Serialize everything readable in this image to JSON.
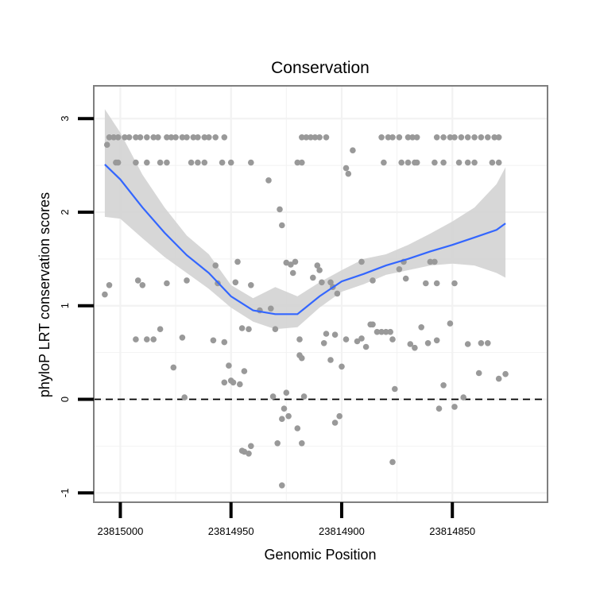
{
  "chart_data": {
    "type": "scatter",
    "title": "Conservation",
    "xlabel": "Genomic Position",
    "ylabel": "phyloP LRT conservation scores",
    "x_reversed": true,
    "xlim": [
      23815012,
      23814807
    ],
    "ylim": [
      -1.1,
      3.35
    ],
    "x_ticks": [
      23815000,
      23814950,
      23814900,
      23814850
    ],
    "x_tick_labels": [
      "23815000",
      "23814950",
      "23814900",
      "23814850"
    ],
    "y_ticks": [
      -1,
      0,
      1,
      2,
      3
    ],
    "y_tick_labels": [
      "-1",
      "0",
      "1",
      "2",
      "3"
    ],
    "grid": true,
    "reference_line": {
      "y": 0,
      "style": "dashed"
    },
    "colors": {
      "points": "#999999",
      "smooth_line": "#3366ff",
      "ribbon": "#d3d3d3",
      "panel_border": "#7f7f7f",
      "grid": "#f2f2f2",
      "reference_line": "#000000"
    },
    "series": [
      {
        "kind": "points",
        "points": [
          [
            23815006,
            2.72
          ],
          [
            23815005,
            2.8
          ],
          [
            23815003,
            2.8
          ],
          [
            23815001,
            2.8
          ],
          [
            23814998,
            2.8
          ],
          [
            23814996,
            2.8
          ],
          [
            23814993,
            2.8
          ],
          [
            23814991,
            2.8
          ],
          [
            23814988,
            2.8
          ],
          [
            23814985,
            2.8
          ],
          [
            23814983,
            2.8
          ],
          [
            23814979,
            2.8
          ],
          [
            23814977,
            2.8
          ],
          [
            23814975,
            2.8
          ],
          [
            23814972,
            2.8
          ],
          [
            23814970,
            2.8
          ],
          [
            23814967,
            2.8
          ],
          [
            23814965,
            2.8
          ],
          [
            23814962,
            2.8
          ],
          [
            23814960,
            2.8
          ],
          [
            23814957,
            2.8
          ],
          [
            23814953,
            2.8
          ],
          [
            23815002,
            2.53
          ],
          [
            23815001,
            2.53
          ],
          [
            23814993,
            2.53
          ],
          [
            23814988,
            2.53
          ],
          [
            23814982,
            2.53
          ],
          [
            23814979,
            2.53
          ],
          [
            23814968,
            2.53
          ],
          [
            23814965,
            2.53
          ],
          [
            23814962,
            2.53
          ],
          [
            23814954,
            2.53
          ],
          [
            23814950,
            2.53
          ],
          [
            23814918,
            2.8
          ],
          [
            23814916,
            2.8
          ],
          [
            23814914,
            2.8
          ],
          [
            23814912,
            2.8
          ],
          [
            23814910,
            2.8
          ],
          [
            23814907,
            2.8
          ],
          [
            23814882,
            2.8
          ],
          [
            23814879,
            2.8
          ],
          [
            23814877,
            2.8
          ],
          [
            23814874,
            2.8
          ],
          [
            23814870,
            2.8
          ],
          [
            23814868,
            2.8
          ],
          [
            23814866,
            2.8
          ],
          [
            23814857,
            2.8
          ],
          [
            23814854,
            2.8
          ],
          [
            23814851,
            2.8
          ],
          [
            23814849,
            2.8
          ],
          [
            23814846,
            2.8
          ],
          [
            23814843,
            2.8
          ],
          [
            23814840,
            2.8
          ],
          [
            23814837,
            2.8
          ],
          [
            23814834,
            2.8
          ],
          [
            23814831,
            2.8
          ],
          [
            23814829,
            2.8
          ],
          [
            23814920,
            2.53
          ],
          [
            23814918,
            2.53
          ],
          [
            23814881,
            2.53
          ],
          [
            23814873,
            2.53
          ],
          [
            23814870,
            2.53
          ],
          [
            23814867,
            2.53
          ],
          [
            23814866,
            2.53
          ],
          [
            23814858,
            2.53
          ],
          [
            23814854,
            2.53
          ],
          [
            23814847,
            2.53
          ],
          [
            23814843,
            2.53
          ],
          [
            23814840,
            2.53
          ],
          [
            23814832,
            2.53
          ],
          [
            23814829,
            2.53
          ],
          [
            23814941,
            2.53
          ],
          [
            23814933,
            2.34
          ],
          [
            23814928,
            2.03
          ],
          [
            23814927,
            1.86
          ],
          [
            23814895,
            2.66
          ],
          [
            23814898,
            2.47
          ],
          [
            23814897,
            2.41
          ],
          [
            23815007,
            1.12
          ],
          [
            23815005,
            1.22
          ],
          [
            23814992,
            1.27
          ],
          [
            23814990,
            1.22
          ],
          [
            23814979,
            1.24
          ],
          [
            23814970,
            1.27
          ],
          [
            23814957,
            1.43
          ],
          [
            23814956,
            1.24
          ],
          [
            23814948,
            1.25
          ],
          [
            23814947,
            1.47
          ],
          [
            23814941,
            1.22
          ],
          [
            23814925,
            1.46
          ],
          [
            23814923,
            1.44
          ],
          [
            23814922,
            1.35
          ],
          [
            23814921,
            1.47
          ],
          [
            23814905,
            1.25
          ],
          [
            23814904,
            1.2
          ],
          [
            23814902,
            1.13
          ],
          [
            23814911,
            1.43
          ],
          [
            23814910,
            1.38
          ],
          [
            23814909,
            1.25
          ],
          [
            23814913,
            1.3
          ],
          [
            23814891,
            1.47
          ],
          [
            23814886,
            1.27
          ],
          [
            23814874,
            1.39
          ],
          [
            23814871,
            1.29
          ],
          [
            23814872,
            1.47
          ],
          [
            23814860,
            1.47
          ],
          [
            23814858,
            1.47
          ],
          [
            23814862,
            1.24
          ],
          [
            23814857,
            1.24
          ],
          [
            23814849,
            1.24
          ],
          [
            23814993,
            0.64
          ],
          [
            23814988,
            0.64
          ],
          [
            23814985,
            0.64
          ],
          [
            23814982,
            0.75
          ],
          [
            23814972,
            0.66
          ],
          [
            23814976,
            0.34
          ],
          [
            23814971,
            0.02
          ],
          [
            23814958,
            0.63
          ],
          [
            23814953,
            0.61
          ],
          [
            23814945,
            0.76
          ],
          [
            23814942,
            0.75
          ],
          [
            23814930,
            0.75
          ],
          [
            23814937,
            0.95
          ],
          [
            23814932,
            0.97
          ],
          [
            23814919,
            0.64
          ],
          [
            23814908,
            0.6
          ],
          [
            23814907,
            0.7
          ],
          [
            23814903,
            0.69
          ],
          [
            23814898,
            0.64
          ],
          [
            23814893,
            0.62
          ],
          [
            23814891,
            0.65
          ],
          [
            23814889,
            0.56
          ],
          [
            23814887,
            0.8
          ],
          [
            23814886,
            0.8
          ],
          [
            23814884,
            0.72
          ],
          [
            23814882,
            0.72
          ],
          [
            23814880,
            0.72
          ],
          [
            23814878,
            0.72
          ],
          [
            23814877,
            0.64
          ],
          [
            23814869,
            0.59
          ],
          [
            23814867,
            0.55
          ],
          [
            23814864,
            0.77
          ],
          [
            23814861,
            0.6
          ],
          [
            23814857,
            0.63
          ],
          [
            23814851,
            0.81
          ],
          [
            23814843,
            0.59
          ],
          [
            23814837,
            0.6
          ],
          [
            23814834,
            0.6
          ],
          [
            23814838,
            0.28
          ],
          [
            23814829,
            0.22
          ],
          [
            23814826,
            0.27
          ],
          [
            23814953,
            0.18
          ],
          [
            23814950,
            0.2
          ],
          [
            23814951,
            0.36
          ],
          [
            23814949,
            0.18
          ],
          [
            23814944,
            0.3
          ],
          [
            23814946,
            0.16
          ],
          [
            23814931,
            0.03
          ],
          [
            23814925,
            0.07
          ],
          [
            23814917,
            0.03
          ],
          [
            23814926,
            -0.1
          ],
          [
            23814924,
            -0.18
          ],
          [
            23814905,
            0.42
          ],
          [
            23814900,
            0.35
          ],
          [
            23814918,
            0.44
          ],
          [
            23814919,
            0.47
          ],
          [
            23814903,
            -0.25
          ],
          [
            23814901,
            -0.18
          ],
          [
            23814876,
            0.11
          ],
          [
            23814854,
            0.15
          ],
          [
            23814849,
            -0.08
          ],
          [
            23814856,
            -0.1
          ],
          [
            23814845,
            0.02
          ],
          [
            23814945,
            -0.55
          ],
          [
            23814944,
            -0.56
          ],
          [
            23814942,
            -0.58
          ],
          [
            23814941,
            -0.5
          ],
          [
            23814929,
            -0.47
          ],
          [
            23814927,
            -0.21
          ],
          [
            23814920,
            -0.31
          ],
          [
            23814918,
            -0.47
          ],
          [
            23814877,
            -0.67
          ],
          [
            23814927,
            -0.92
          ]
        ]
      },
      {
        "kind": "smooth",
        "points": [
          [
            23815007,
            2.51
          ],
          [
            23815000,
            2.35
          ],
          [
            23814990,
            2.05
          ],
          [
            23814980,
            1.78
          ],
          [
            23814970,
            1.54
          ],
          [
            23814960,
            1.35
          ],
          [
            23814950,
            1.1
          ],
          [
            23814940,
            0.95
          ],
          [
            23814930,
            0.91
          ],
          [
            23814920,
            0.91
          ],
          [
            23814910,
            1.1
          ],
          [
            23814900,
            1.26
          ],
          [
            23814890,
            1.34
          ],
          [
            23814880,
            1.43
          ],
          [
            23814870,
            1.5
          ],
          [
            23814860,
            1.58
          ],
          [
            23814850,
            1.65
          ],
          [
            23814840,
            1.73
          ],
          [
            23814830,
            1.81
          ],
          [
            23814826,
            1.88
          ]
        ],
        "band_upper": [
          [
            23815007,
            3.1
          ],
          [
            23815000,
            2.85
          ],
          [
            23814990,
            2.4
          ],
          [
            23814980,
            2.05
          ],
          [
            23814970,
            1.75
          ],
          [
            23814960,
            1.55
          ],
          [
            23814950,
            1.22
          ],
          [
            23814940,
            1.08
          ],
          [
            23814930,
            1.2
          ],
          [
            23814920,
            1.1
          ],
          [
            23814910,
            1.25
          ],
          [
            23814900,
            1.38
          ],
          [
            23814890,
            1.5
          ],
          [
            23814880,
            1.55
          ],
          [
            23814870,
            1.65
          ],
          [
            23814860,
            1.77
          ],
          [
            23814850,
            1.9
          ],
          [
            23814840,
            2.05
          ],
          [
            23814830,
            2.3
          ],
          [
            23814826,
            2.48
          ]
        ],
        "band_lower": [
          [
            23815007,
            1.95
          ],
          [
            23815000,
            1.93
          ],
          [
            23814990,
            1.72
          ],
          [
            23814980,
            1.52
          ],
          [
            23814970,
            1.35
          ],
          [
            23814960,
            1.18
          ],
          [
            23814950,
            0.98
          ],
          [
            23814940,
            0.83
          ],
          [
            23814930,
            0.75
          ],
          [
            23814920,
            0.77
          ],
          [
            23814910,
            0.98
          ],
          [
            23814900,
            1.15
          ],
          [
            23814890,
            1.23
          ],
          [
            23814880,
            1.33
          ],
          [
            23814870,
            1.38
          ],
          [
            23814860,
            1.43
          ],
          [
            23814850,
            1.45
          ],
          [
            23814840,
            1.43
          ],
          [
            23814830,
            1.35
          ],
          [
            23814826,
            1.3
          ]
        ]
      }
    ]
  }
}
